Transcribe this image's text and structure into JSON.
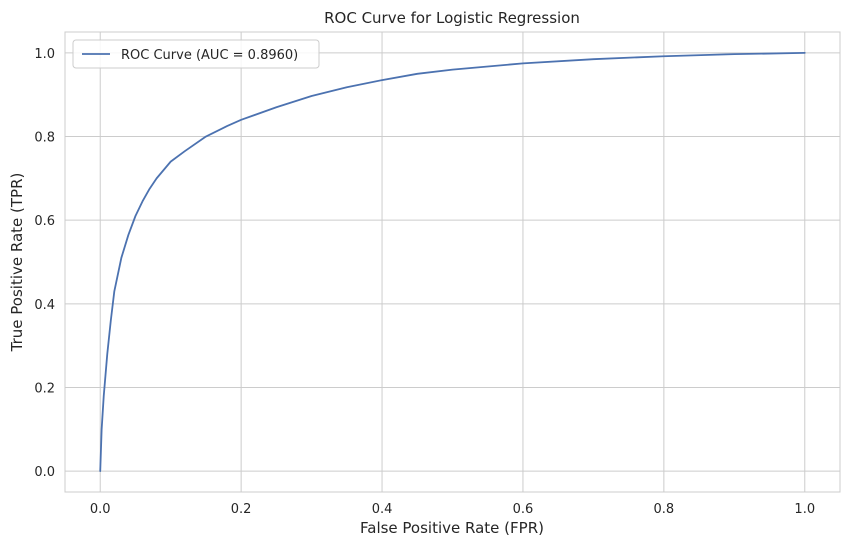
{
  "chart_data": {
    "type": "line",
    "title": "ROC Curve for Logistic Regression",
    "xlabel": "False Positive Rate (FPR)",
    "ylabel": "True Positive Rate (TPR)",
    "xlim": [
      -0.05,
      1.05
    ],
    "ylim": [
      -0.05,
      1.05
    ],
    "xticks": [
      0.0,
      0.2,
      0.4,
      0.6,
      0.8,
      1.0
    ],
    "xtick_labels": [
      "0.0",
      "0.2",
      "0.4",
      "0.6",
      "0.8",
      "1.0"
    ],
    "yticks": [
      0.0,
      0.2,
      0.4,
      0.6,
      0.8,
      1.0
    ],
    "ytick_labels": [
      "0.0",
      "0.2",
      "0.4",
      "0.6",
      "0.8",
      "1.0"
    ],
    "grid": true,
    "legend_position": "top-left",
    "series": [
      {
        "name": "ROC Curve (AUC = 0.8960)",
        "color": "#4c72b0",
        "x": [
          0.0,
          0.002,
          0.005,
          0.01,
          0.015,
          0.02,
          0.03,
          0.04,
          0.05,
          0.06,
          0.07,
          0.08,
          0.1,
          0.12,
          0.15,
          0.18,
          0.2,
          0.25,
          0.3,
          0.35,
          0.4,
          0.45,
          0.5,
          0.6,
          0.7,
          0.8,
          0.9,
          1.0
        ],
        "y": [
          0.0,
          0.1,
          0.18,
          0.28,
          0.36,
          0.43,
          0.51,
          0.565,
          0.61,
          0.645,
          0.675,
          0.7,
          0.74,
          0.765,
          0.8,
          0.825,
          0.84,
          0.87,
          0.897,
          0.918,
          0.935,
          0.95,
          0.96,
          0.975,
          0.985,
          0.992,
          0.997,
          1.0
        ]
      }
    ]
  }
}
